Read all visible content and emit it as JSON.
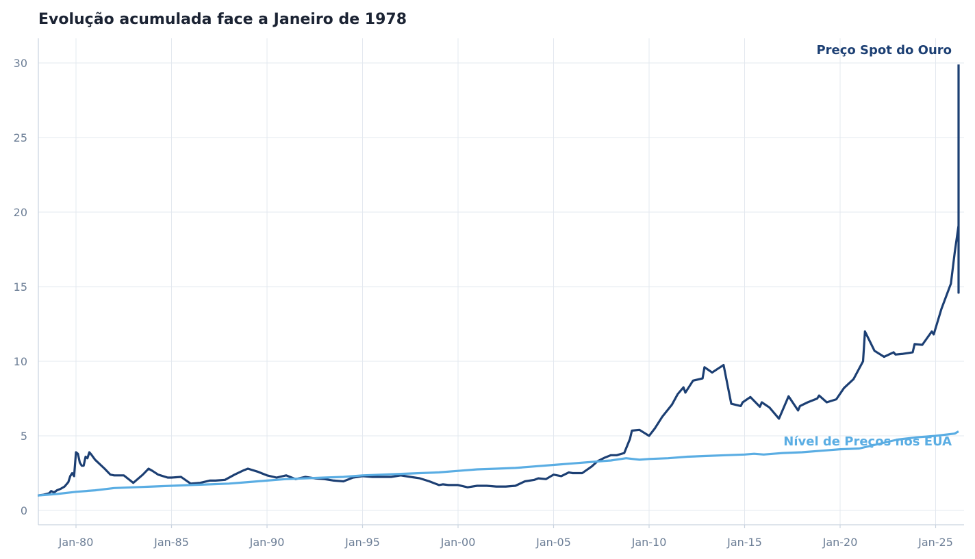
{
  "chart_data": {
    "type": "line",
    "title": "Evolução acumulada face a Janeiro de 1978",
    "xlabel": "",
    "ylabel": "",
    "xlim": [
      1978.0,
      2026.3
    ],
    "ylim": [
      -1,
      31.7
    ],
    "x_ticks": [
      {
        "value": 1980,
        "label": "Jan-80"
      },
      {
        "value": 1985,
        "label": "Jan-85"
      },
      {
        "value": 1990,
        "label": "Jan-90"
      },
      {
        "value": 1995,
        "label": "Jan-95"
      },
      {
        "value": 2000,
        "label": "Jan-00"
      },
      {
        "value": 2005,
        "label": "Jan-05"
      },
      {
        "value": 2010,
        "label": "Jan-10"
      },
      {
        "value": 2015,
        "label": "Jan-15"
      },
      {
        "value": 2020,
        "label": "Jan-20"
      },
      {
        "value": 2025,
        "label": "Jan-25"
      }
    ],
    "y_ticks": [
      0,
      5,
      10,
      15,
      20,
      25,
      30
    ],
    "grid": true,
    "series": [
      {
        "name": "Preço Spot do Ouro",
        "color": "#1c3f73",
        "points": [
          [
            1978.0,
            1.0
          ],
          [
            1978.3,
            1.05
          ],
          [
            1978.6,
            1.15
          ],
          [
            1978.7,
            1.3
          ],
          [
            1978.85,
            1.2
          ],
          [
            1979.0,
            1.35
          ],
          [
            1979.2,
            1.45
          ],
          [
            1979.4,
            1.6
          ],
          [
            1979.6,
            1.9
          ],
          [
            1979.7,
            2.3
          ],
          [
            1979.8,
            2.5
          ],
          [
            1979.9,
            2.3
          ],
          [
            1980.0,
            3.9
          ],
          [
            1980.1,
            3.8
          ],
          [
            1980.2,
            3.2
          ],
          [
            1980.3,
            3.0
          ],
          [
            1980.4,
            3.0
          ],
          [
            1980.5,
            3.6
          ],
          [
            1980.6,
            3.5
          ],
          [
            1980.7,
            3.9
          ],
          [
            1980.8,
            3.75
          ],
          [
            1981.0,
            3.4
          ],
          [
            1981.5,
            2.8
          ],
          [
            1981.8,
            2.4
          ],
          [
            1982.0,
            2.35
          ],
          [
            1982.5,
            2.35
          ],
          [
            1983.0,
            1.85
          ],
          [
            1983.5,
            2.4
          ],
          [
            1983.8,
            2.8
          ],
          [
            1984.0,
            2.65
          ],
          [
            1984.3,
            2.4
          ],
          [
            1984.8,
            2.2
          ],
          [
            1985.0,
            2.2
          ],
          [
            1985.5,
            2.25
          ],
          [
            1986.0,
            1.8
          ],
          [
            1986.5,
            1.85
          ],
          [
            1987.0,
            2.0
          ],
          [
            1987.3,
            2.0
          ],
          [
            1987.8,
            2.05
          ],
          [
            1988.3,
            2.4
          ],
          [
            1988.8,
            2.7
          ],
          [
            1989.0,
            2.8
          ],
          [
            1989.5,
            2.6
          ],
          [
            1990.0,
            2.35
          ],
          [
            1990.5,
            2.2
          ],
          [
            1991.0,
            2.35
          ],
          [
            1991.5,
            2.1
          ],
          [
            1992.0,
            2.25
          ],
          [
            1992.5,
            2.15
          ],
          [
            1993.0,
            2.1
          ],
          [
            1993.5,
            2.0
          ],
          [
            1994.0,
            1.95
          ],
          [
            1994.5,
            2.2
          ],
          [
            1995.0,
            2.3
          ],
          [
            1995.5,
            2.25
          ],
          [
            1996.0,
            2.25
          ],
          [
            1996.5,
            2.25
          ],
          [
            1997.0,
            2.35
          ],
          [
            1997.5,
            2.25
          ],
          [
            1998.0,
            2.15
          ],
          [
            1998.5,
            1.95
          ],
          [
            1999.0,
            1.7
          ],
          [
            1999.2,
            1.75
          ],
          [
            1999.5,
            1.7
          ],
          [
            2000.0,
            1.7
          ],
          [
            2000.5,
            1.55
          ],
          [
            2001.0,
            1.65
          ],
          [
            2001.5,
            1.65
          ],
          [
            2002.0,
            1.6
          ],
          [
            2002.5,
            1.6
          ],
          [
            2003.0,
            1.65
          ],
          [
            2003.5,
            1.95
          ],
          [
            2004.0,
            2.05
          ],
          [
            2004.2,
            2.15
          ],
          [
            2004.6,
            2.1
          ],
          [
            2005.0,
            2.4
          ],
          [
            2005.4,
            2.3
          ],
          [
            2005.8,
            2.55
          ],
          [
            2006.0,
            2.5
          ],
          [
            2006.5,
            2.5
          ],
          [
            2007.0,
            2.95
          ],
          [
            2007.3,
            3.3
          ],
          [
            2007.7,
            3.55
          ],
          [
            2008.0,
            3.7
          ],
          [
            2008.3,
            3.7
          ],
          [
            2008.7,
            3.85
          ],
          [
            2009.0,
            4.8
          ],
          [
            2009.1,
            5.35
          ],
          [
            2009.5,
            5.4
          ],
          [
            2010.0,
            5.0
          ],
          [
            2010.3,
            5.5
          ],
          [
            2010.7,
            6.3
          ],
          [
            2011.2,
            7.1
          ],
          [
            2011.5,
            7.8
          ],
          [
            2011.8,
            8.25
          ],
          [
            2011.9,
            7.9
          ],
          [
            2012.3,
            8.7
          ],
          [
            2012.8,
            8.85
          ],
          [
            2012.9,
            9.6
          ],
          [
            2013.3,
            9.25
          ],
          [
            2013.6,
            9.5
          ],
          [
            2013.9,
            9.75
          ],
          [
            2014.3,
            7.15
          ],
          [
            2014.8,
            7.0
          ],
          [
            2014.9,
            7.25
          ],
          [
            2015.3,
            7.6
          ],
          [
            2015.8,
            6.95
          ],
          [
            2015.9,
            7.25
          ],
          [
            2016.3,
            6.9
          ],
          [
            2016.8,
            6.15
          ],
          [
            2017.3,
            7.65
          ],
          [
            2017.8,
            6.7
          ],
          [
            2017.9,
            7.0
          ],
          [
            2018.3,
            7.25
          ],
          [
            2018.8,
            7.5
          ],
          [
            2018.9,
            7.7
          ],
          [
            2019.3,
            7.25
          ],
          [
            2019.8,
            7.45
          ],
          [
            2020.2,
            8.2
          ],
          [
            2020.7,
            8.8
          ],
          [
            2021.2,
            10.0
          ],
          [
            2021.3,
            12.0
          ],
          [
            2021.8,
            10.7
          ],
          [
            2022.3,
            10.3
          ],
          [
            2022.8,
            10.6
          ],
          [
            2022.9,
            10.45
          ],
          [
            2023.3,
            10.5
          ],
          [
            2023.8,
            10.6
          ],
          [
            2023.9,
            11.15
          ],
          [
            2024.3,
            11.1
          ],
          [
            2024.8,
            12.0
          ],
          [
            2024.9,
            11.8
          ],
          [
            2025.3,
            13.5
          ],
          [
            2025.8,
            15.2
          ],
          [
            2026.0,
            17.3
          ],
          [
            2026.2,
            19.1
          ],
          [
            2026.3,
            18.8
          ],
          [
            2026.4,
            19.2
          ],
          [
            2026.5,
            14.6
          ],
          [
            2026.6,
            15.0
          ],
          [
            2026.7,
            15.8
          ],
          [
            2026.8,
            15.3
          ],
          [
            2026.9,
            16.2
          ],
          [
            2027.0,
            17.0
          ],
          [
            2027.1,
            29.9
          ]
        ]
      },
      {
        "name": "Nível de Preços nos EUA",
        "color": "#5aade3",
        "points": [
          [
            1978.0,
            1.0
          ],
          [
            1979.0,
            1.1
          ],
          [
            1980.0,
            1.25
          ],
          [
            1981.0,
            1.35
          ],
          [
            1982.0,
            1.5
          ],
          [
            1983.0,
            1.55
          ],
          [
            1984.0,
            1.6
          ],
          [
            1985.0,
            1.65
          ],
          [
            1986.0,
            1.7
          ],
          [
            1987.0,
            1.75
          ],
          [
            1988.0,
            1.8
          ],
          [
            1989.0,
            1.9
          ],
          [
            1990.0,
            2.0
          ],
          [
            1991.0,
            2.1
          ],
          [
            1992.0,
            2.15
          ],
          [
            1993.0,
            2.2
          ],
          [
            1994.0,
            2.25
          ],
          [
            1995.0,
            2.35
          ],
          [
            1996.0,
            2.4
          ],
          [
            1997.0,
            2.45
          ],
          [
            1998.0,
            2.5
          ],
          [
            1999.0,
            2.55
          ],
          [
            2000.0,
            2.65
          ],
          [
            2001.0,
            2.75
          ],
          [
            2002.0,
            2.8
          ],
          [
            2003.0,
            2.85
          ],
          [
            2004.0,
            2.95
          ],
          [
            2005.0,
            3.05
          ],
          [
            2006.0,
            3.15
          ],
          [
            2007.0,
            3.25
          ],
          [
            2008.0,
            3.35
          ],
          [
            2008.8,
            3.5
          ],
          [
            2009.5,
            3.4
          ],
          [
            2010.0,
            3.45
          ],
          [
            2011.0,
            3.5
          ],
          [
            2012.0,
            3.6
          ],
          [
            2013.0,
            3.65
          ],
          [
            2014.0,
            3.7
          ],
          [
            2015.0,
            3.75
          ],
          [
            2015.5,
            3.8
          ],
          [
            2016.0,
            3.75
          ],
          [
            2016.5,
            3.8
          ],
          [
            2017.0,
            3.85
          ],
          [
            2018.0,
            3.9
          ],
          [
            2019.0,
            4.0
          ],
          [
            2020.0,
            4.1
          ],
          [
            2021.0,
            4.15
          ],
          [
            2022.0,
            4.45
          ],
          [
            2023.0,
            4.75
          ],
          [
            2024.0,
            4.9
          ],
          [
            2025.0,
            5.0
          ],
          [
            2026.0,
            5.15
          ],
          [
            2027.1,
            5.3
          ]
        ]
      }
    ]
  }
}
